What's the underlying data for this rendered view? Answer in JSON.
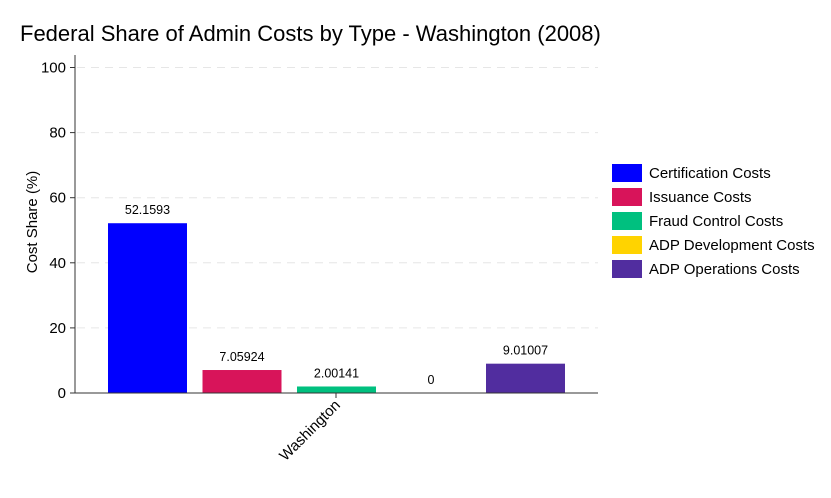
{
  "chart_data": {
    "type": "bar",
    "title": "Federal Share of Admin Costs by Type - Washington (2008)",
    "xlabel": "",
    "ylabel": "Cost Share (%)",
    "ylim": [
      0,
      100
    ],
    "yticks": [
      "0",
      "20",
      "40",
      "60",
      "80",
      "100"
    ],
    "categories": [
      "Washington"
    ],
    "grid": "horizontal dashed",
    "legend_position": "right",
    "series": [
      {
        "name": "Certification Costs",
        "values": [
          52.1593
        ],
        "label": "52.1593",
        "color": "#0000ff"
      },
      {
        "name": "Issuance Costs",
        "values": [
          7.05924
        ],
        "label": "7.05924",
        "color": "#d8145a"
      },
      {
        "name": "Fraud Control Costs",
        "values": [
          2.00141
        ],
        "label": "2.00141",
        "color": "#00c07f"
      },
      {
        "name": "ADP Development Costs",
        "values": [
          0
        ],
        "label": "0",
        "color": "#ffd300"
      },
      {
        "name": "ADP Operations Costs",
        "values": [
          9.01007
        ],
        "label": "9.01007",
        "color": "#512d9f"
      }
    ]
  }
}
